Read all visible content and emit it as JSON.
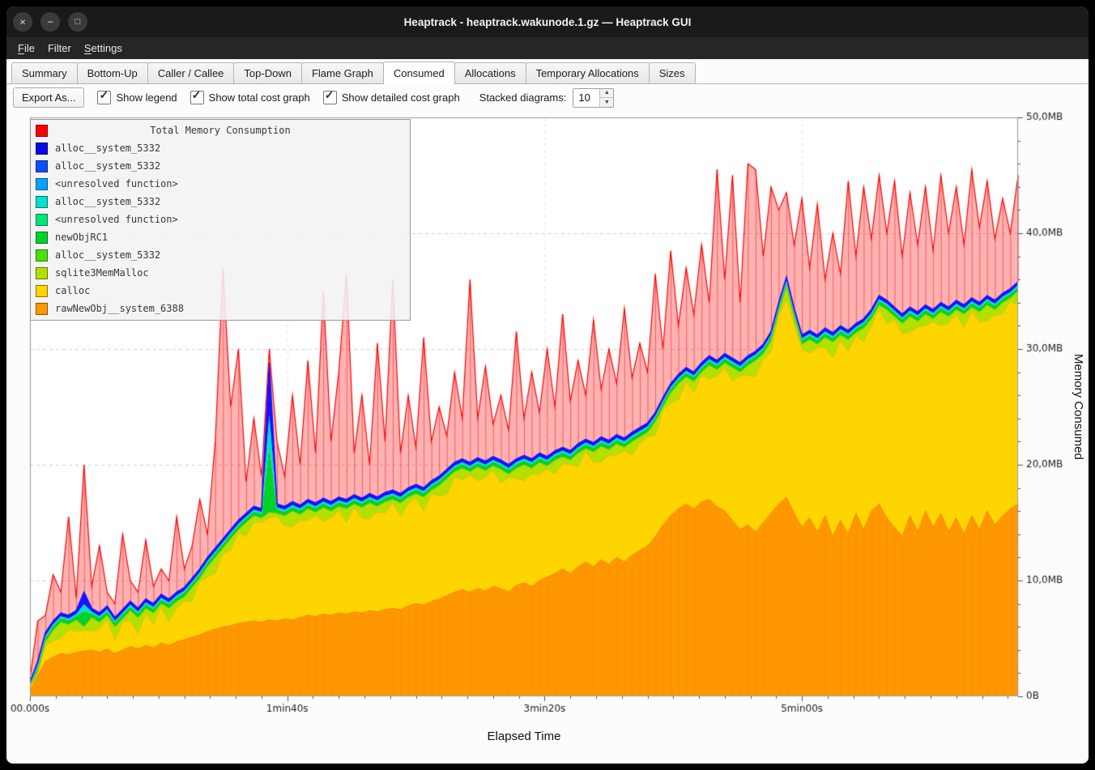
{
  "window": {
    "title": "Heaptrack - heaptrack.wakunode.1.gz — Heaptrack GUI"
  },
  "icons": {
    "close": "×",
    "minimize": "−",
    "maximize": "□",
    "check": "✓",
    "spin_up": "▲",
    "spin_down": "▼"
  },
  "menu": {
    "items": [
      {
        "label": "File",
        "mnemonic_index": 0
      },
      {
        "label": "Filter",
        "mnemonic_index": -1
      },
      {
        "label": "Settings",
        "mnemonic_index": 0
      }
    ]
  },
  "tabs": {
    "items": [
      "Summary",
      "Bottom-Up",
      "Caller / Callee",
      "Top-Down",
      "Flame Graph",
      "Consumed",
      "Allocations",
      "Temporary Allocations",
      "Sizes"
    ],
    "active": "Consumed"
  },
  "toolbar": {
    "export_label": "Export As...",
    "checkboxes": [
      {
        "label": "Show legend",
        "checked": true
      },
      {
        "label": "Show total cost graph",
        "checked": true
      },
      {
        "label": "Show detailed cost graph",
        "checked": true
      }
    ],
    "stacked_label": "Stacked diagrams:",
    "stacked_value": "10"
  },
  "legend": {
    "title": "Total Memory Consumption",
    "title_color": "#ff0000",
    "items": [
      {
        "label": "alloc__system_5332",
        "color": "#0a0ae6"
      },
      {
        "label": "alloc__system_5332",
        "color": "#0a50ff"
      },
      {
        "label": "<unresolved function>",
        "color": "#00a2ff"
      },
      {
        "label": "alloc__system_5332",
        "color": "#00e0cc"
      },
      {
        "label": "<unresolved function>",
        "color": "#00e57a"
      },
      {
        "label": "newObjRC1",
        "color": "#00d22b"
      },
      {
        "label": "alloc__system_5332",
        "color": "#4be000"
      },
      {
        "label": "sqlite3MemMalloc",
        "color": "#b4e000"
      },
      {
        "label": "calloc",
        "color": "#ffd500"
      },
      {
        "label": "rawNewObj__system_6388",
        "color": "#ff9800"
      }
    ]
  },
  "chart_data": {
    "type": "area",
    "title": "Total Memory Consumption",
    "xlabel": "Elapsed Time",
    "ylabel": "Memory Consumed",
    "unit": "MB",
    "xlim": [
      0,
      384
    ],
    "ylim": [
      0,
      50
    ],
    "x_start": 0,
    "x_step": 3,
    "x_ticks": [
      {
        "v": 0,
        "label": "00.000s"
      },
      {
        "v": 100,
        "label": "1min40s"
      },
      {
        "v": 200,
        "label": "3min20s"
      },
      {
        "v": 300,
        "label": "5min00s"
      }
    ],
    "y_ticks": [
      {
        "v": 0,
        "label": "0B"
      },
      {
        "v": 10,
        "label": "10,0MB"
      },
      {
        "v": 20,
        "label": "20,0MB"
      },
      {
        "v": 30,
        "label": "30,0MB"
      },
      {
        "v": 40,
        "label": "40,0MB"
      },
      {
        "v": 50,
        "label": "50,0MB"
      }
    ],
    "series_names": {
      "orange": "rawNewObj__system_6388",
      "yellow": "calloc",
      "yellowgreen": "sqlite3MemMalloc",
      "green": "newObjRC1",
      "cyan": "alloc__system_5332 / <unresolved function>",
      "blue": "alloc__system_5332",
      "red": "Total Memory Consumption"
    },
    "colors": {
      "orange": "#ff9800",
      "yellow": "#ffd500",
      "yellowgreen": "#b4e000",
      "green": "#00d22b",
      "cyan": "#00e0cc",
      "blue": "#1414ff",
      "red": "#ff0000",
      "red_fill": "rgba(255,0,0,0.30)",
      "red_hatch": "rgba(255,0,0,0.5)",
      "orange_hatch": "rgba(220,110,0,0.18)",
      "grid": "#d0d0d0",
      "frame": "#9a9a9a",
      "tick_text": "#1a1a1a"
    },
    "sub_bands": [
      {
        "color": "green",
        "frac": 0.45
      },
      {
        "color": "cyan",
        "frac": 0.2
      },
      {
        "color": "blue",
        "frac": 0.35
      }
    ],
    "series_tops": {
      "orange": [
        0.5,
        1.8,
        3.0,
        3.4,
        3.7,
        3.6,
        3.8,
        3.9,
        4.0,
        3.8,
        4.1,
        3.7,
        4.0,
        4.3,
        4.1,
        4.4,
        4.2,
        4.6,
        4.4,
        4.7,
        4.9,
        5.1,
        5.3,
        5.6,
        5.8,
        6.0,
        6.1,
        6.3,
        6.4,
        6.5,
        6.4,
        6.6,
        6.5,
        6.7,
        6.6,
        6.8,
        7.0,
        6.9,
        7.1,
        7.0,
        7.2,
        7.1,
        7.3,
        7.2,
        7.4,
        7.3,
        7.5,
        7.6,
        7.5,
        7.8,
        8.0,
        7.9,
        8.2,
        8.4,
        8.7,
        9.0,
        9.2,
        9.0,
        9.3,
        9.1,
        9.5,
        9.3,
        9.0,
        9.6,
        9.8,
        9.5,
        10.0,
        10.3,
        10.6,
        11.0,
        10.6,
        11.2,
        11.6,
        11.2,
        11.8,
        11.4,
        12.0,
        11.6,
        12.2,
        12.6,
        13.0,
        13.8,
        14.8,
        15.6,
        16.2,
        16.6,
        16.2,
        16.8,
        17.0,
        16.4,
        16.0,
        15.2,
        14.4,
        14.8,
        14.2,
        15.0,
        15.8,
        16.6,
        17.2,
        15.8,
        14.6,
        15.4,
        14.2,
        15.6,
        13.8,
        15.2,
        14.0,
        15.8,
        14.4,
        16.0,
        16.6,
        15.4,
        14.6,
        13.8,
        15.6,
        14.2,
        16.0,
        14.6,
        15.8,
        14.2,
        15.4,
        14.0,
        15.6,
        14.4,
        16.0,
        14.8,
        15.6,
        16.2,
        16.6
      ],
      "yellow": [
        0.7,
        2.0,
        4.4,
        4.8,
        5.0,
        5.7,
        5.6,
        5.7,
        5.6,
        5.8,
        6.6,
        4.8,
        6.4,
        6.5,
        5.4,
        7.1,
        6.2,
        7.7,
        6.4,
        7.6,
        8.2,
        8.2,
        9.9,
        10.3,
        10.6,
        12.3,
        12.6,
        14.1,
        13.8,
        15.0,
        15.0,
        15.4,
        15.5,
        14.7,
        14.6,
        15.2,
        15.2,
        15.6,
        15.1,
        15.4,
        16.0,
        15.0,
        16.3,
        15.4,
        15.3,
        15.9,
        15.8,
        16.7,
        15.5,
        16.6,
        17.1,
        16.0,
        17.5,
        17.3,
        17.4,
        18.9,
        18.7,
        19.1,
        18.6,
        18.9,
        19.5,
        18.4,
        18.9,
        18.8,
        18.6,
        19.2,
        19.2,
        19.6,
        19.2,
        20.1,
        20.0,
        19.8,
        21.1,
        20.2,
        20.2,
        20.8,
        20.8,
        21.2,
        20.8,
        21.8,
        22.4,
        22.5,
        24.7,
        25.3,
        25.6,
        27.1,
        26.2,
        27.7,
        27.4,
        27.6,
        28.4,
        27.2,
        27.7,
        27.7,
        27.6,
        29.1,
        29.7,
        32.9,
        34.2,
        32.1,
        30.0,
        29.6,
        30.1,
        30.1,
        29.2,
        30.7,
        29.8,
        31.1,
        30.6,
        32.0,
        33.4,
        32.2,
        32.5,
        31.3,
        31.4,
        31.9,
        32.0,
        32.3,
        32.0,
        32.2,
        33.0,
        31.8,
        33.3,
        32.3,
        32.4,
        32.9,
        33.0,
        34.1,
        33.8
      ],
      "yellowgreen": [
        0.9,
        2.2,
        4.7,
        5.7,
        6.4,
        6.2,
        6.6,
        6.0,
        6.8,
        6.4,
        7.0,
        6.0,
        6.7,
        7.4,
        6.8,
        7.6,
        7.2,
        8.0,
        7.6,
        8.2,
        8.6,
        9.4,
        10.2,
        11.2,
        12.0,
        12.8,
        13.6,
        14.4,
        15.0,
        15.6,
        15.4,
        15.9,
        15.8,
        15.6,
        16.0,
        15.7,
        16.2,
        15.9,
        16.3,
        16.0,
        16.4,
        16.2,
        16.6,
        16.3,
        16.7,
        16.4,
        16.8,
        17.0,
        16.7,
        17.2,
        17.5,
        17.2,
        17.8,
        18.2,
        18.8,
        19.4,
        19.7,
        19.4,
        19.8,
        19.5,
        19.9,
        19.6,
        19.2,
        19.7,
        20.0,
        19.7,
        20.2,
        19.9,
        20.4,
        20.7,
        20.4,
        21.0,
        21.4,
        21.1,
        21.6,
        21.3,
        21.8,
        21.5,
        22.0,
        22.4,
        22.8,
        23.7,
        25.0,
        26.2,
        27.0,
        27.6,
        27.2,
        28.0,
        28.6,
        28.2,
        28.8,
        28.4,
        28.0,
        28.6,
        29.0,
        29.6,
        30.7,
        33.2,
        35.4,
        32.7,
        30.4,
        30.8,
        30.4,
        31.0,
        30.6,
        31.2,
        30.8,
        31.4,
        31.8,
        32.6,
        33.8,
        33.4,
        32.8,
        32.2,
        32.8,
        32.4,
        33.0,
        32.6,
        33.2,
        32.8,
        33.4,
        33.0,
        33.6,
        33.2,
        33.8,
        33.4,
        34.0,
        34.4,
        35.0
      ],
      "blue": [
        1.2,
        3.0,
        5.5,
        6.5,
        7.2,
        7.0,
        7.4,
        9.0,
        7.6,
        7.2,
        7.8,
        6.8,
        7.5,
        8.2,
        7.6,
        8.4,
        8.0,
        8.8,
        8.4,
        9.0,
        9.4,
        10.2,
        11.0,
        12.0,
        12.8,
        13.6,
        14.4,
        15.2,
        15.8,
        16.4,
        16.2,
        28.8,
        16.6,
        16.4,
        16.8,
        16.5,
        17.0,
        16.7,
        17.1,
        16.8,
        17.2,
        17.0,
        17.4,
        17.1,
        17.5,
        17.2,
        17.6,
        17.8,
        17.5,
        18.0,
        18.3,
        18.0,
        18.6,
        19.0,
        19.6,
        20.2,
        20.5,
        20.2,
        20.6,
        20.3,
        20.7,
        20.4,
        20.0,
        20.5,
        20.8,
        20.5,
        21.0,
        20.7,
        21.2,
        21.5,
        21.2,
        21.8,
        22.2,
        21.9,
        22.4,
        22.1,
        22.6,
        22.3,
        22.8,
        23.2,
        23.6,
        24.5,
        25.8,
        27.0,
        27.8,
        28.4,
        28.0,
        28.8,
        29.4,
        29.0,
        29.6,
        29.2,
        28.8,
        29.4,
        29.8,
        30.4,
        31.5,
        34.0,
        36.2,
        33.5,
        31.2,
        31.6,
        31.2,
        31.8,
        31.4,
        32.0,
        31.6,
        32.2,
        32.6,
        33.4,
        34.6,
        34.2,
        33.6,
        33.0,
        33.6,
        33.2,
        33.8,
        33.4,
        34.0,
        33.6,
        34.2,
        33.8,
        34.4,
        34.0,
        34.6,
        34.2,
        34.8,
        35.2,
        35.8
      ],
      "red": [
        1.5,
        6.5,
        7.0,
        10.5,
        9.0,
        15.5,
        8.5,
        20.0,
        9.5,
        13.0,
        9.0,
        8.0,
        14.0,
        10.0,
        9.0,
        13.5,
        9.5,
        11.0,
        10.0,
        15.5,
        11.0,
        13.0,
        17.0,
        14.0,
        22.0,
        37.0,
        25.0,
        30.0,
        18.5,
        24.0,
        19.0,
        30.0,
        22.0,
        19.0,
        26.0,
        20.0,
        29.0,
        21.0,
        35.0,
        22.0,
        28.0,
        36.5,
        21.0,
        26.0,
        20.0,
        30.5,
        22.0,
        36.0,
        21.0,
        26.0,
        21.5,
        31.0,
        22.0,
        25.0,
        22.5,
        28.0,
        24.0,
        36.0,
        24.0,
        28.5,
        23.5,
        26.0,
        23.0,
        31.5,
        24.0,
        28.0,
        24.5,
        30.0,
        25.0,
        33.0,
        25.5,
        29.0,
        26.0,
        32.5,
        26.5,
        30.0,
        27.0,
        33.5,
        27.5,
        30.5,
        28.0,
        36.5,
        30.0,
        38.5,
        32.0,
        37.0,
        33.0,
        39.0,
        34.0,
        45.5,
        36.0,
        45.0,
        34.0,
        46.0,
        45.5,
        38.0,
        44.0,
        42.0,
        43.5,
        39.0,
        43.0,
        37.0,
        42.5,
        36.0,
        40.0,
        36.5,
        44.5,
        38.0,
        44.0,
        39.5,
        45.0,
        40.0,
        44.5,
        38.0,
        43.5,
        39.0,
        44.0,
        38.5,
        45.0,
        40.0,
        44.0,
        39.0,
        45.5,
        40.5,
        44.5,
        39.5,
        43.0,
        40.0,
        45.0
      ]
    }
  }
}
